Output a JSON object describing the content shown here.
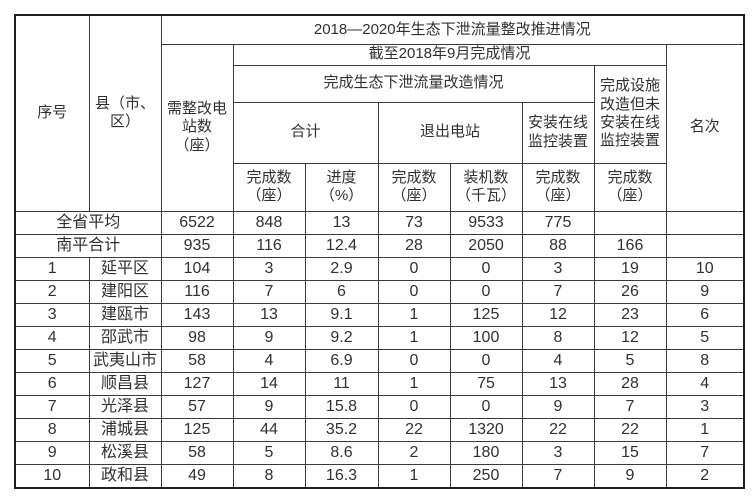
{
  "table": {
    "title": "2018—2020年生态下泄流量整改推进情况",
    "header": {
      "serial": "序号",
      "county": "县（市、\n区）",
      "need_stations": "需整改电\n站数\n（座）",
      "as_of": "截至2018年9月完成情况",
      "retrofit_group": "完成生态下泄流量改造情况",
      "total_group": "合计",
      "exit_group": "退出电站",
      "online_group": "安装在线\n监控装置",
      "facility_group": "完成设施\n改造但未\n安装在线\n监控装置",
      "rank": "名次",
      "total_done": "完成数\n（座）",
      "total_progress": "进度\n（%）",
      "exit_done": "完成数\n（座）",
      "exit_capacity": "装机数\n（千瓦）",
      "online_done": "完成数\n（座）",
      "facility_done": "完成数\n（座）"
    },
    "rows": [
      {
        "serial": null,
        "name": "全省平均",
        "values": [
          "6522",
          "848",
          "13",
          "73",
          "9533",
          "775",
          "",
          ""
        ]
      },
      {
        "serial": null,
        "name": "南平合计",
        "values": [
          "935",
          "116",
          "12.4",
          "28",
          "2050",
          "88",
          "166",
          ""
        ]
      },
      {
        "serial": "1",
        "name": "延平区",
        "values": [
          "104",
          "3",
          "2.9",
          "0",
          "0",
          "3",
          "19",
          "10"
        ]
      },
      {
        "serial": "2",
        "name": "建阳区",
        "values": [
          "116",
          "7",
          "6",
          "0",
          "0",
          "7",
          "26",
          "9"
        ]
      },
      {
        "serial": "3",
        "name": "建瓯市",
        "values": [
          "143",
          "13",
          "9.1",
          "1",
          "125",
          "12",
          "23",
          "6"
        ]
      },
      {
        "serial": "4",
        "name": "邵武市",
        "values": [
          "98",
          "9",
          "9.2",
          "1",
          "100",
          "8",
          "12",
          "5"
        ]
      },
      {
        "serial": "5",
        "name": "武夷山市",
        "values": [
          "58",
          "4",
          "6.9",
          "0",
          "0",
          "4",
          "5",
          "8"
        ]
      },
      {
        "serial": "6",
        "name": "顺昌县",
        "values": [
          "127",
          "14",
          "11",
          "1",
          "75",
          "13",
          "28",
          "4"
        ]
      },
      {
        "serial": "7",
        "name": "光泽县",
        "values": [
          "57",
          "9",
          "15.8",
          "0",
          "0",
          "9",
          "7",
          "3"
        ]
      },
      {
        "serial": "8",
        "name": "浦城县",
        "values": [
          "125",
          "44",
          "35.2",
          "22",
          "1320",
          "22",
          "22",
          "1"
        ]
      },
      {
        "serial": "9",
        "name": "松溪县",
        "values": [
          "58",
          "5",
          "8.6",
          "2",
          "180",
          "3",
          "15",
          "7"
        ]
      },
      {
        "serial": "10",
        "name": "政和县",
        "values": [
          "49",
          "8",
          "16.3",
          "1",
          "250",
          "7",
          "9",
          "2"
        ]
      }
    ],
    "colors": {
      "border": "#3a3a3a",
      "outer_border": "#1f1f1f",
      "text": "#303030",
      "background": "#ffffff"
    }
  }
}
